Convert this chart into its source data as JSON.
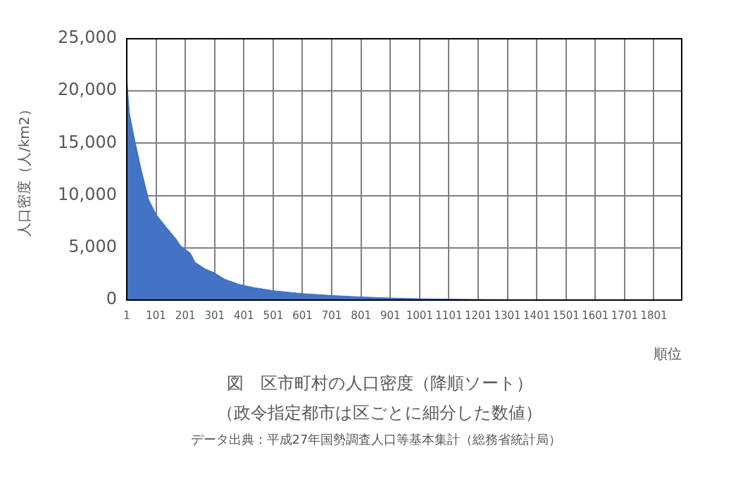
{
  "chart_data": {
    "type": "area",
    "title": "図　区市町村の人口密度（降順ソート）",
    "subtitle": "（政令指定都市は区ごとに細分した数値）",
    "annotations": [
      "データ出典：平成27年国勢調査人口等基本集計（総務省統計局）"
    ],
    "xlabel": "順位",
    "ylabel": "人口密度（人/km2）",
    "series": [
      {
        "color": "#4472c4",
        "x": [
          1,
          2,
          10,
          26,
          51,
          76,
          101,
          135,
          168,
          185,
          218,
          235,
          268,
          301,
          335,
          385,
          418,
          435,
          468,
          501,
          601,
          701,
          801,
          901,
          993,
          1110,
          1200,
          1313,
          1400,
          1600,
          1896
        ],
        "values": [
          22500,
          20900,
          17900,
          15600,
          12400,
          9600,
          8200,
          7000,
          5900,
          5200,
          4500,
          3600,
          3000,
          2600,
          2000,
          1500,
          1300,
          1200,
          1050,
          900,
          620,
          440,
          300,
          200,
          130,
          90,
          60,
          30,
          20,
          10,
          1
        ]
      }
    ],
    "xlim": [
      1,
      1896
    ],
    "xticks": [
      1,
      101,
      201,
      301,
      401,
      501,
      601,
      701,
      801,
      901,
      1001,
      1101,
      1201,
      1301,
      1401,
      1501,
      1601,
      1701,
      1801
    ],
    "ylim": [
      0,
      25000
    ],
    "yticks": [
      {
        "value": 0,
        "label": "0"
      },
      {
        "value": 5000,
        "label": "5,000"
      },
      {
        "value": 10000,
        "label": "10,000"
      },
      {
        "value": 15000,
        "label": "15,000"
      },
      {
        "value": 20000,
        "label": "20,000"
      },
      {
        "value": 25000,
        "label": "25,000"
      }
    ],
    "grid": true,
    "legend": false
  }
}
